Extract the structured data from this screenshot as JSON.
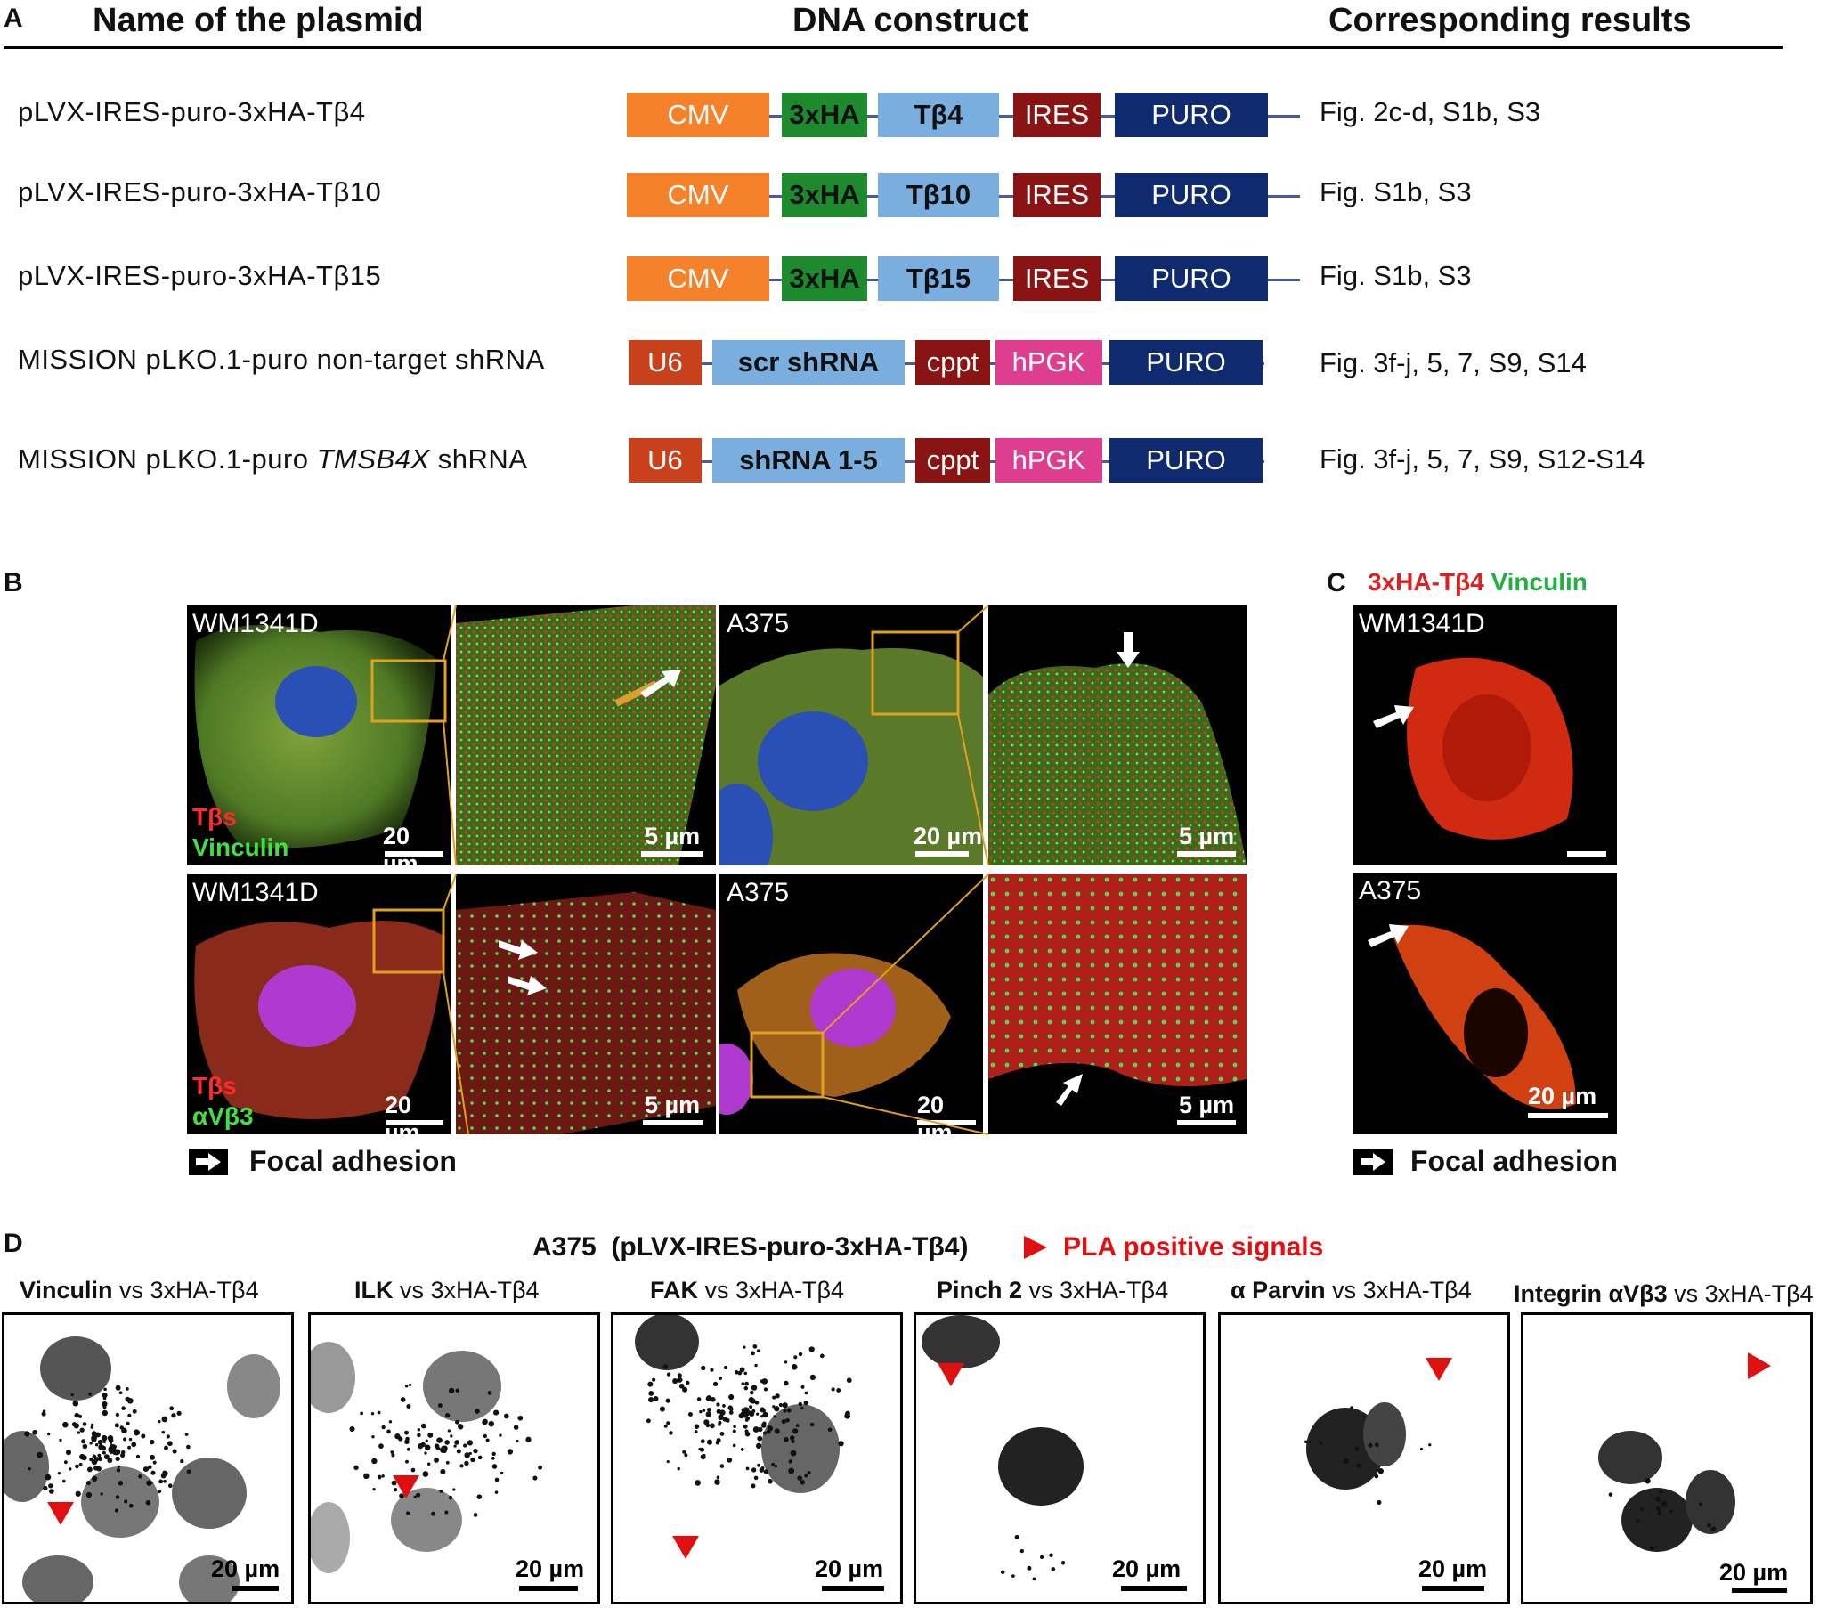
{
  "panelA": {
    "letter": "A",
    "headers": {
      "name": "Name of the plasmid",
      "construct": "DNA construct",
      "results": "Corresponding results"
    },
    "rows": [
      {
        "name": "pLVX-IRES-puro-3xHA-Tβ4",
        "segments": [
          "CMV",
          "3xHA",
          "Tβ4",
          "IRES",
          "PURO"
        ],
        "results": "Fig. 2c-d, S1b, S3"
      },
      {
        "name": "pLVX-IRES-puro-3xHA-Tβ10",
        "segments": [
          "CMV",
          "3xHA",
          "Tβ10",
          "IRES",
          "PURO"
        ],
        "results": "Fig. S1b, S3"
      },
      {
        "name": "pLVX-IRES-puro-3xHA-Tβ15",
        "segments": [
          "CMV",
          "3xHA",
          "Tβ15",
          "IRES",
          "PURO"
        ],
        "results": "Fig. S1b, S3"
      },
      {
        "name": "MISSION pLKO.1-puro non-target shRNA",
        "segments": [
          "U6",
          "scr shRNA",
          "cppt",
          "hPGK",
          "PURO"
        ],
        "results": "Fig. 3f-j, 5, 7, S9, S14"
      },
      {
        "name_prefix": "MISSION pLKO.1-puro ",
        "name_italic": "TMSB4X",
        "name_suffix": " shRNA",
        "segments": [
          "U6",
          "shRNA 1-5",
          "cppt",
          "hPGK",
          "PURO"
        ],
        "results": "Fig. 3f-j, 5, 7, S9, S12-S14"
      }
    ],
    "colors": {
      "CMV": "#f5822a",
      "3xHA": "#1e8a2e",
      "Tβ": "#79aede",
      "IRES": "#8a1414",
      "PURO": "#0f2a6e",
      "U6": "#c8411a",
      "shRNA": "#79aede",
      "cppt": "#8a1414",
      "hPGK": "#df3d8f"
    }
  },
  "panelB": {
    "letter": "B",
    "cells": {
      "wm": "WM1341D",
      "a375": "A375"
    },
    "stain_tbs": "Tβs",
    "stain_vinculin": "Vinculin",
    "stain_avb3": "αVβ3",
    "scale_20": "20 µm",
    "scale_5": "5 µm",
    "legend": "Focal adhesion"
  },
  "panelC": {
    "letter": "C",
    "title_red": "3xHA-Tβ4",
    "title_green": "Vinculin",
    "cells": {
      "wm": "WM1341D",
      "a375": "A375"
    },
    "scale_20": "20 µm",
    "legend": "Focal adhesion"
  },
  "panelD": {
    "letter": "D",
    "title": "A375  (pLVX-IRES-puro-3xHA-Tβ4)",
    "legend": "PLA positive signals",
    "vs_text": " vs 3xHA-Tβ4",
    "panels": [
      {
        "target": "Vinculin"
      },
      {
        "target": "ILK"
      },
      {
        "target": "FAK"
      },
      {
        "target": "Pinch 2"
      },
      {
        "target": "α Parvin"
      },
      {
        "target": "Integrin αVβ3"
      }
    ],
    "scale": "20 µm"
  }
}
